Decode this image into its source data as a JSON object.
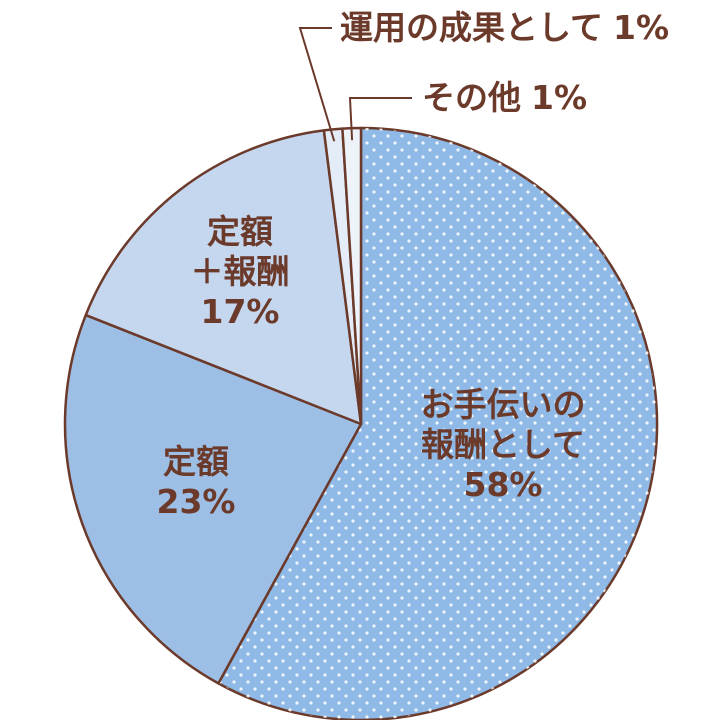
{
  "chart_data": {
    "type": "pie",
    "categories": [
      "お手伝いの\n報酬として",
      "定額",
      "定額\n＋報酬",
      "運用の成果として",
      "その他"
    ],
    "values": [
      58,
      23,
      17,
      1,
      1
    ],
    "value_labels": [
      "58%",
      "23%",
      "17%",
      "1%",
      "1%"
    ],
    "colors": [
      "#8fb9e6",
      "#9ebfe5",
      "#c5d7ef",
      "#e3ecf7",
      "#eef3fa"
    ],
    "start_angle": 0,
    "direction": "clockwise"
  }
}
